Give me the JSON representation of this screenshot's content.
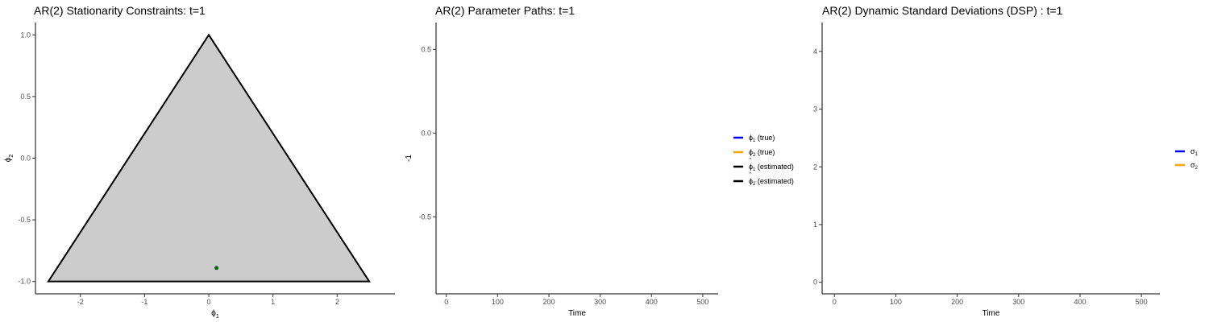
{
  "chart_data": [
    {
      "id": "stationarity",
      "type": "scatter",
      "title": "AR(2) Stationarity Constraints: t=1",
      "xlabel": "ϕ",
      "xlabel_sub": "1",
      "ylabel": "ϕ",
      "ylabel_sub": "2",
      "xlim": [
        -2.7,
        2.9
      ],
      "ylim": [
        -1.1,
        1.1
      ],
      "x_ticks": [
        -2,
        -1,
        0,
        1,
        2
      ],
      "x_tick_labels": [
        "-2",
        "-1",
        "0",
        "1",
        "2"
      ],
      "y_ticks": [
        -1,
        -0.5,
        0,
        0.5,
        1
      ],
      "y_tick_labels": [
        "-1.0",
        "-0.5",
        "0.0",
        "0.5",
        "1.0"
      ],
      "region": {
        "x": [
          -2.5,
          0,
          2.5
        ],
        "y": [
          -1,
          1,
          -1
        ],
        "fill": "#cccccc",
        "stroke": "#000000"
      },
      "points": [
        {
          "x": 0.12,
          "y": -0.89,
          "color": "#006400"
        }
      ],
      "grid": false
    },
    {
      "id": "parameter-paths",
      "type": "line",
      "title": "AR(2) Parameter Paths: t=1",
      "xlabel": "Time",
      "ylabel": "-1",
      "xlim": [
        -20,
        530
      ],
      "ylim": [
        -0.96,
        0.66
      ],
      "x_ticks": [
        0,
        100,
        200,
        300,
        400,
        500
      ],
      "x_tick_labels": [
        "0",
        "100",
        "200",
        "300",
        "400",
        "500"
      ],
      "y_ticks": [
        -0.5,
        0,
        0.5
      ],
      "y_tick_labels": [
        "-0.5",
        "0.0",
        "0.5"
      ],
      "grid": false,
      "legend_position": "right",
      "legend": [
        {
          "symbol": "ϕ",
          "sub": "1",
          "text": " (true)",
          "color": "#0000ff",
          "hat": false
        },
        {
          "symbol": "ϕ",
          "sub": "2",
          "text": " (true)",
          "color": "#ffa500",
          "hat": false
        },
        {
          "symbol": "ϕ",
          "sub": "1",
          "text": " (estimated)",
          "color": "#000000",
          "hat": true
        },
        {
          "symbol": "ϕ",
          "sub": "2",
          "text": " (estimated)",
          "color": "#000000",
          "hat": true
        }
      ],
      "series": []
    },
    {
      "id": "dynamic-sd",
      "type": "line",
      "title": "AR(2) Dynamic Standard Deviations (DSP) : t=1",
      "xlabel": "Time",
      "ylabel": "",
      "xlim": [
        -20,
        530
      ],
      "ylim": [
        -0.2,
        4.5
      ],
      "x_ticks": [
        0,
        100,
        200,
        300,
        400,
        500
      ],
      "x_tick_labels": [
        "0",
        "100",
        "200",
        "300",
        "400",
        "500"
      ],
      "y_ticks": [
        0,
        1,
        2,
        3,
        4
      ],
      "y_tick_labels": [
        "0",
        "1",
        "2",
        "3",
        "4"
      ],
      "grid": false,
      "legend_position": "right",
      "legend": [
        {
          "symbol": "σ",
          "sub": "1",
          "text": "",
          "color": "#0000ff",
          "hat": false
        },
        {
          "symbol": "σ",
          "sub": "2",
          "text": "",
          "color": "#ffa500",
          "hat": false
        }
      ],
      "series": []
    }
  ]
}
